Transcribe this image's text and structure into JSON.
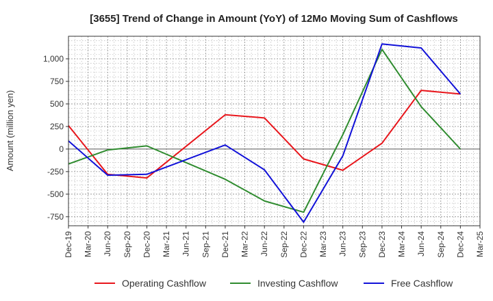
{
  "chart_data": {
    "type": "line",
    "title": "[3655]  Trend of Change in Amount (YoY) of 12Mo Moving Sum of Cashflows",
    "ylabel": "Amount (million yen)",
    "xlabel": "",
    "ylim": [
      -850,
      1250
    ],
    "yticks": [
      -750,
      -500,
      -250,
      0,
      250,
      500,
      750,
      1000
    ],
    "ytick_labels": [
      "-750",
      "-500",
      "-250",
      "0",
      "250",
      "500",
      "750",
      "1,000"
    ],
    "categories": [
      "Dec-19",
      "Mar-20",
      "Jun-20",
      "Sep-20",
      "Dec-20",
      "Mar-21",
      "Jun-21",
      "Sep-21",
      "Dec-21",
      "Mar-22",
      "Jun-22",
      "Sep-22",
      "Dec-22",
      "Mar-23",
      "Jun-23",
      "Sep-23",
      "Dec-23",
      "Mar-24",
      "Jun-24",
      "Sep-24",
      "Dec-24",
      "Mar-25"
    ],
    "grid": true,
    "legend_position": "bottom",
    "series": [
      {
        "name": "Operating Cashflow",
        "color": "#e8141a",
        "points": [
          [
            0,
            260
          ],
          [
            2,
            -280
          ],
          [
            4,
            -320
          ],
          [
            8,
            380
          ],
          [
            10,
            345
          ],
          [
            12,
            -110
          ],
          [
            14,
            -235
          ],
          [
            16,
            65
          ],
          [
            18,
            650
          ],
          [
            20,
            610
          ]
        ]
      },
      {
        "name": "Investing Cashflow",
        "color": "#2e8b2e",
        "points": [
          [
            0,
            -165
          ],
          [
            2,
            -10
          ],
          [
            4,
            35
          ],
          [
            8,
            -335
          ],
          [
            10,
            -575
          ],
          [
            12,
            -700
          ],
          [
            14,
            160
          ],
          [
            16,
            1105
          ],
          [
            18,
            470
          ],
          [
            20,
            0
          ]
        ]
      },
      {
        "name": "Free Cashflow",
        "color": "#1010d8",
        "points": [
          [
            0,
            90
          ],
          [
            2,
            -290
          ],
          [
            4,
            -280
          ],
          [
            8,
            45
          ],
          [
            10,
            -230
          ],
          [
            12,
            -810
          ],
          [
            14,
            -75
          ],
          [
            16,
            1165
          ],
          [
            18,
            1120
          ],
          [
            20,
            610
          ]
        ]
      }
    ]
  }
}
